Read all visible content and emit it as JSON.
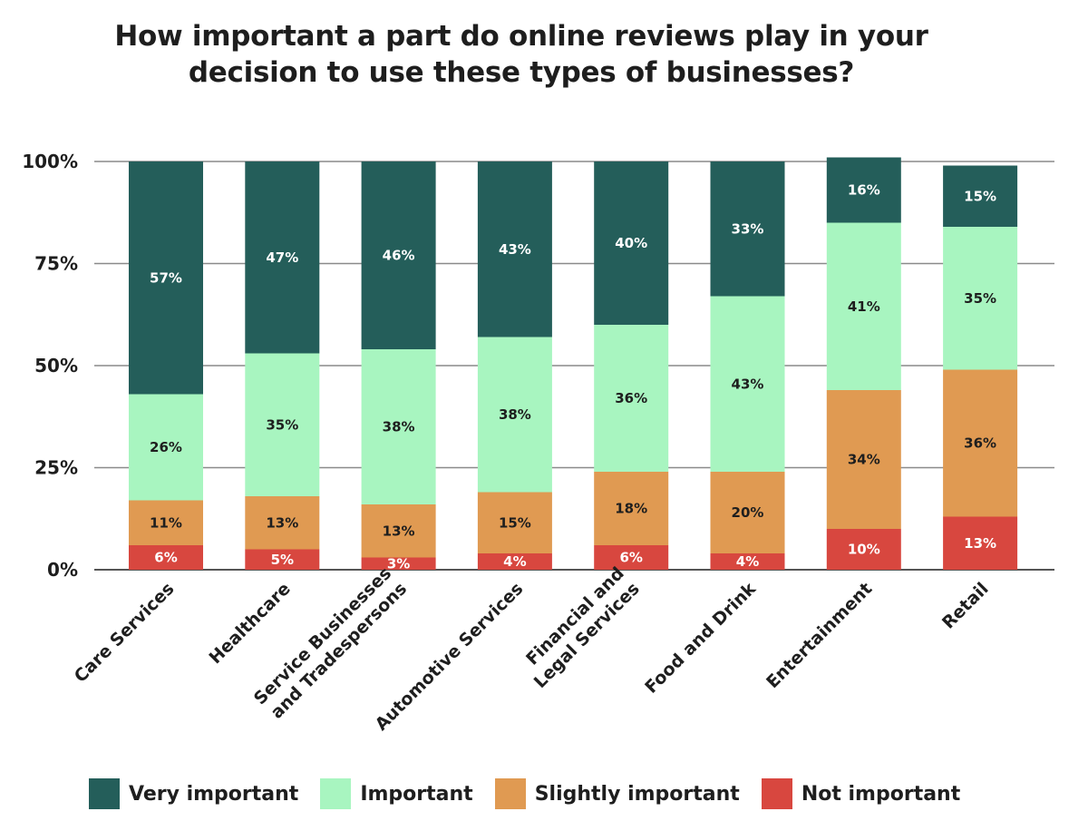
{
  "chart_data": {
    "type": "bar",
    "stacked": true,
    "title_lines": [
      "How important a part do online reviews play in your",
      "decision to use these types of businesses?"
    ],
    "categories": [
      [
        "Care Services"
      ],
      [
        "Healthcare"
      ],
      [
        "Service Businesses",
        "and Tradespersons"
      ],
      [
        "Automotive Services"
      ],
      [
        "Financial and",
        "Legal Services"
      ],
      [
        "Food and Drink"
      ],
      [
        "Entertainment"
      ],
      [
        "Retail"
      ]
    ],
    "yticks": [
      "0%",
      "25%",
      "50%",
      "75%",
      "100%"
    ],
    "ylim": [
      0,
      100
    ],
    "grid": true,
    "legend_position": "bottom",
    "series": [
      {
        "name": "Not important",
        "color": "#d8473f",
        "label_color": "#ffffff",
        "values": [
          6,
          5,
          3,
          4,
          6,
          4,
          10,
          13
        ]
      },
      {
        "name": "Slightly important",
        "color": "#e09a52",
        "label_color": "#1e1e1e",
        "values": [
          11,
          13,
          13,
          15,
          18,
          20,
          34,
          36
        ]
      },
      {
        "name": "Important",
        "color": "#a8f5c0",
        "label_color": "#1e1e1e",
        "values": [
          26,
          35,
          38,
          38,
          36,
          43,
          41,
          35
        ]
      },
      {
        "name": "Very important",
        "color": "#245e5a",
        "label_color": "#ffffff",
        "values": [
          57,
          47,
          46,
          43,
          40,
          33,
          16,
          15
        ]
      }
    ],
    "legend_order": [
      "Very important",
      "Important",
      "Slightly important",
      "Not important"
    ]
  }
}
